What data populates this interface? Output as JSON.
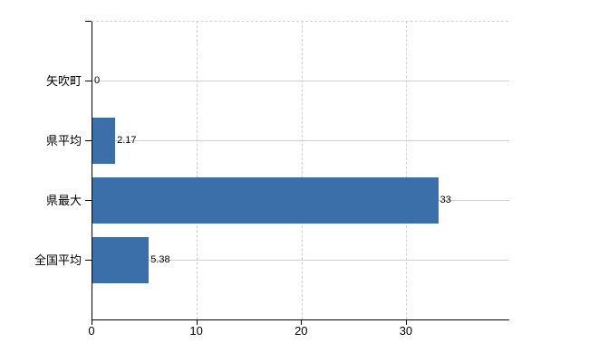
{
  "chart_data": {
    "type": "bar",
    "orientation": "horizontal",
    "title": "",
    "xlabel": "",
    "ylabel": "",
    "categories": [
      "矢吹町",
      "県平均",
      "県最大",
      "全国平均"
    ],
    "values": [
      0,
      2.17,
      33,
      5.38
    ],
    "value_labels": [
      "0",
      "2.17",
      "33",
      "5.38"
    ],
    "x_ticks": [
      0,
      10,
      20,
      30
    ],
    "x_tick_labels": [
      "0",
      "10",
      "20",
      "30"
    ],
    "xlim": [
      0,
      39.8
    ],
    "grid": true,
    "legend": "none",
    "bar_color": "#3b6faa",
    "axis_color": "#000000",
    "hgrid_color": "#ccd5c9",
    "vgrid_color": "#d4cbd4"
  }
}
